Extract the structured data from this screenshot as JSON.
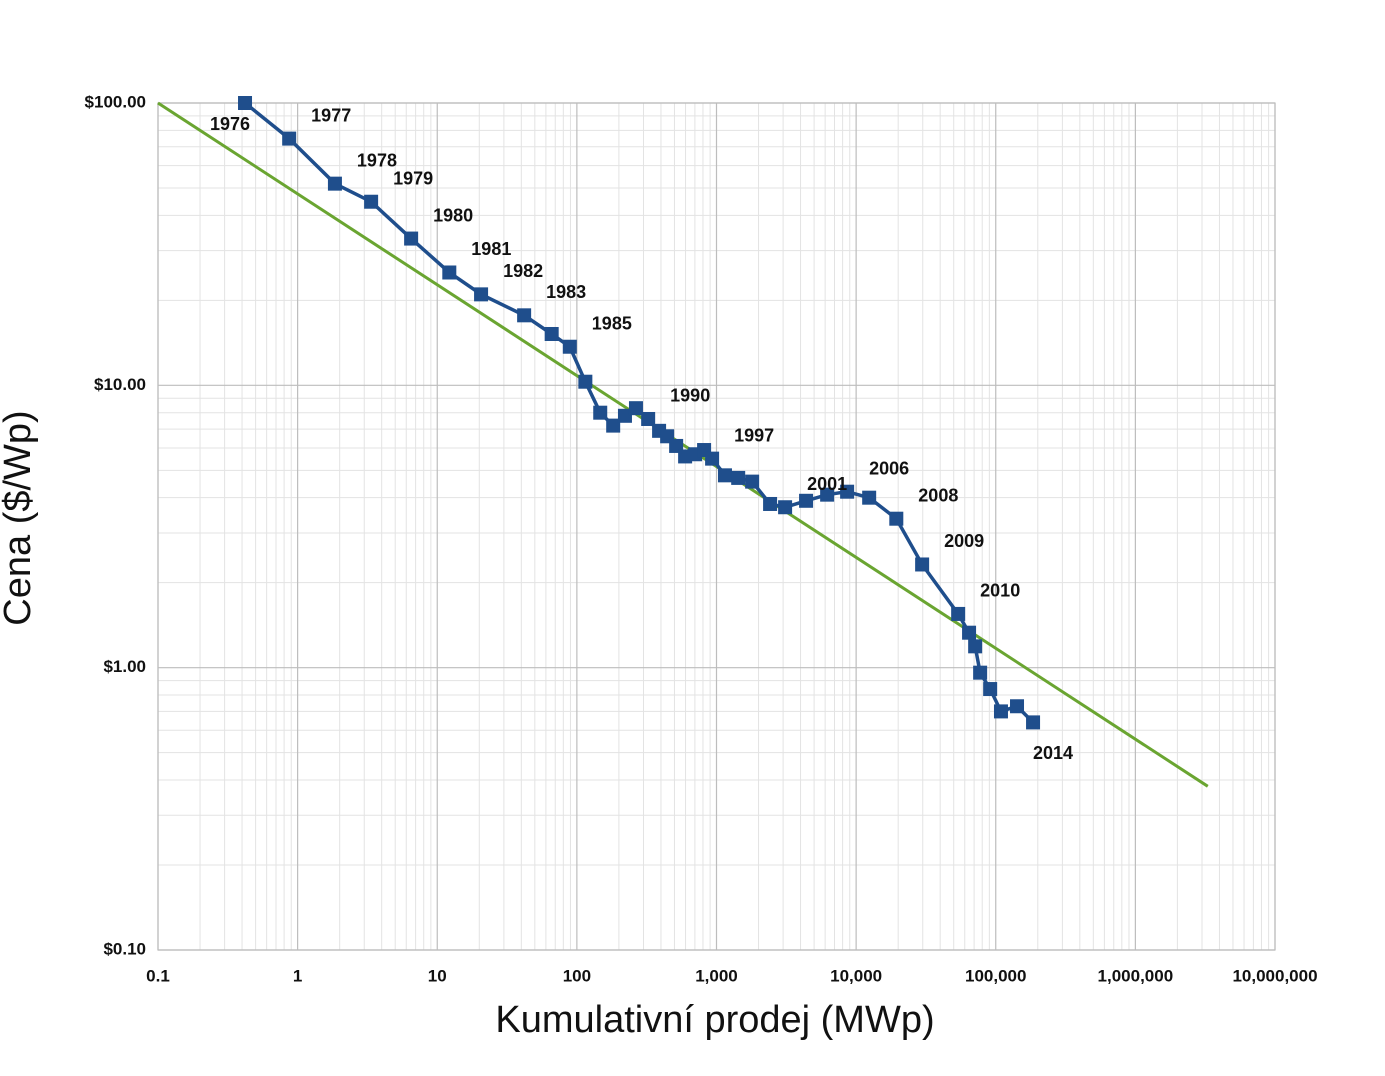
{
  "chart_data": {
    "type": "line",
    "x_label": "Kumulativní prodej (MWp)",
    "y_label": "Cena ($/Wp)",
    "log_x": true,
    "log_y": true,
    "grid": true,
    "xlim": [
      0.1,
      10000000
    ],
    "ylim": [
      0.1,
      100
    ],
    "xticks": [
      0.1,
      1,
      10,
      100,
      {
        "value": 1000,
        "label": "1,000"
      },
      {
        "value": 10000,
        "label": "10,000"
      },
      {
        "value": 100000,
        "label": "100,000"
      },
      {
        "value": 1000000,
        "label": "1,000,000"
      },
      {
        "value": 10000000,
        "label": "10,000,000"
      }
    ],
    "yticks": [
      {
        "value": 0.1,
        "label": "$0.10"
      },
      {
        "value": 1,
        "label": "$1.00"
      },
      {
        "value": 10,
        "label": "$10.00"
      },
      {
        "value": 100,
        "label": "$100.00"
      }
    ],
    "series": [
      {
        "color": "#1f4e8c",
        "marker": "square",
        "x": [
          0.42,
          0.87,
          1.85,
          3.36,
          6.5,
          12.2,
          20.6,
          41.9,
          66,
          89,
          115,
          147,
          182,
          221,
          265,
          324,
          388,
          443,
          514,
          596,
          703,
          815,
          930,
          1150,
          1430,
          1800,
          2420,
          3100,
          4380,
          6200,
          8620,
          12400,
          19400,
          29700,
          53800,
          64400,
          71200,
          77300,
          91200,
          109000,
          142000,
          185000
        ],
        "values": [
          100,
          74.8,
          51.8,
          44.7,
          33.1,
          25.1,
          21.0,
          17.7,
          15.2,
          13.7,
          10.3,
          8.0,
          7.2,
          7.8,
          8.3,
          7.6,
          6.9,
          6.6,
          6.1,
          5.6,
          5.7,
          5.9,
          5.5,
          4.8,
          4.7,
          4.56,
          3.8,
          3.7,
          3.9,
          4.1,
          4.2,
          4.0,
          3.37,
          2.32,
          1.55,
          1.33,
          1.19,
          0.96,
          0.84,
          0.7,
          0.73,
          0.64
        ],
        "point_labels": [
          "1976",
          "1977",
          "1978",
          "1979",
          "1980",
          "1981",
          "1982",
          "1983",
          null,
          "1985",
          null,
          null,
          null,
          null,
          null,
          "1990",
          null,
          null,
          null,
          null,
          null,
          null,
          "1997",
          null,
          null,
          null,
          null,
          "2001",
          null,
          null,
          "2006",
          null,
          "2008",
          "2009",
          "2010",
          null,
          null,
          null,
          null,
          null,
          null,
          "2014"
        ]
      },
      {
        "color": "#6aa531",
        "marker": "none",
        "x": [
          0.1,
          3300000
        ],
        "values": [
          100,
          0.38
        ]
      }
    ]
  }
}
